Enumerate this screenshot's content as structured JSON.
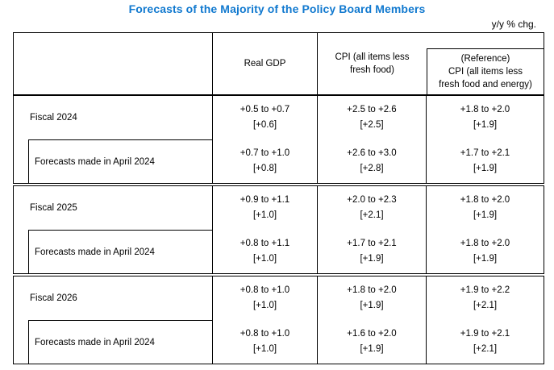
{
  "title": "Forecasts of the Majority of the Policy Board Members",
  "unit_label": "y/y % chg.",
  "colors": {
    "title": "#1179cf",
    "border": "#000000",
    "text": "#000000"
  },
  "table": {
    "header": {
      "row_label": "",
      "real_gdp": "Real GDP",
      "cpi": "CPI (all items less\nfresh food)",
      "reference": "(Reference)\nCPI (all items less\nfresh food and energy)"
    },
    "groups": [
      {
        "label": "Fiscal 2024",
        "cells": [
          {
            "range": "+0.5 to +0.7",
            "median": "[+0.6]"
          },
          {
            "range": "+2.5 to +2.6",
            "median": "[+2.5]"
          },
          {
            "range": "+1.8 to +2.0",
            "median": "[+1.9]"
          }
        ],
        "sub": {
          "label": "Forecasts made in April 2024",
          "cells": [
            {
              "range": "+0.7 to +1.0",
              "median": "[+0.8]"
            },
            {
              "range": "+2.6 to +3.0",
              "median": "[+2.8]"
            },
            {
              "range": "+1.7 to +2.1",
              "median": "[+1.9]"
            }
          ]
        }
      },
      {
        "label": "Fiscal 2025",
        "cells": [
          {
            "range": "+0.9 to +1.1",
            "median": "[+1.0]"
          },
          {
            "range": "+2.0 to +2.3",
            "median": "[+2.1]"
          },
          {
            "range": "+1.8 to +2.0",
            "median": "[+1.9]"
          }
        ],
        "sub": {
          "label": "Forecasts made in April 2024",
          "cells": [
            {
              "range": "+0.8 to +1.1",
              "median": "[+1.0]"
            },
            {
              "range": "+1.7 to +2.1",
              "median": "[+1.9]"
            },
            {
              "range": "+1.8 to +2.0",
              "median": "[+1.9]"
            }
          ]
        }
      },
      {
        "label": "Fiscal 2026",
        "cells": [
          {
            "range": "+0.8 to +1.0",
            "median": "[+1.0]"
          },
          {
            "range": "+1.8 to +2.0",
            "median": "[+1.9]"
          },
          {
            "range": "+1.9 to +2.2",
            "median": "[+2.1]"
          }
        ],
        "sub": {
          "label": "Forecasts made in April 2024",
          "cells": [
            {
              "range": "+0.8 to +1.0",
              "median": "[+1.0]"
            },
            {
              "range": "+1.6 to +2.0",
              "median": "[+1.9]"
            },
            {
              "range": "+1.9 to +2.1",
              "median": "[+2.1]"
            }
          ]
        }
      }
    ]
  }
}
